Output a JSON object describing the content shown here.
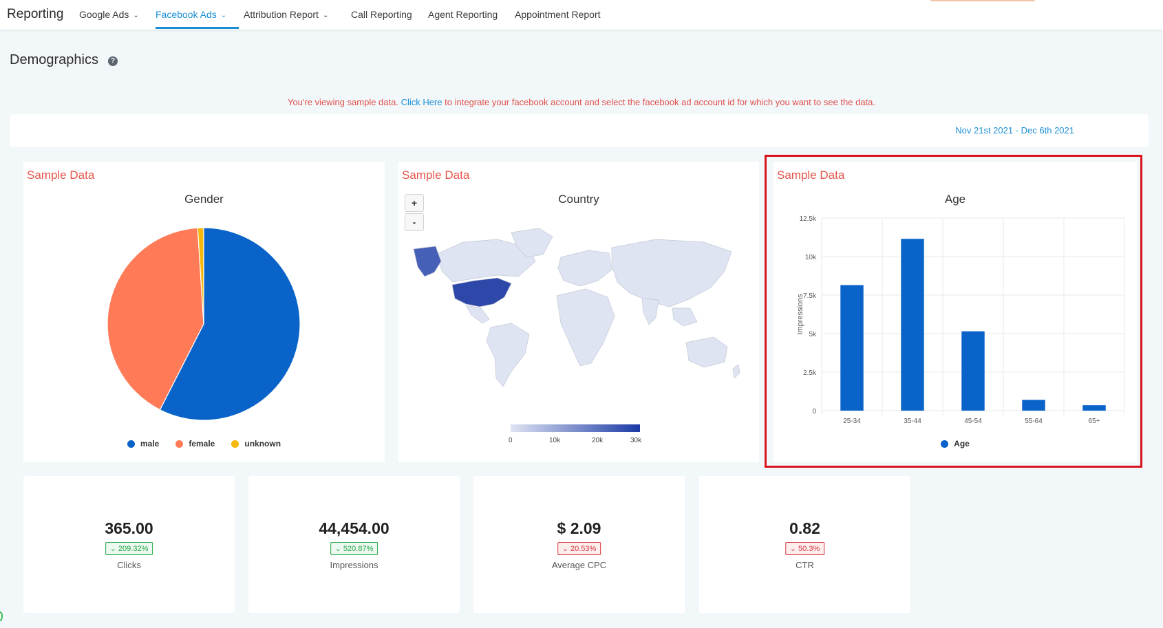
{
  "nav": {
    "brand": "Reporting",
    "items": [
      {
        "label": "Google Ads",
        "dropdown": true,
        "active": false
      },
      {
        "label": "Facebook Ads",
        "dropdown": true,
        "active": true
      },
      {
        "label": "Attribution Report",
        "dropdown": true,
        "active": false
      },
      {
        "label": "Call Reporting",
        "dropdown": false,
        "active": false
      },
      {
        "label": "Agent Reporting",
        "dropdown": false,
        "active": false
      },
      {
        "label": "Appointment Report",
        "dropdown": false,
        "active": false
      }
    ]
  },
  "header": {
    "title": "Demographics",
    "help_icon": "?"
  },
  "notice": {
    "before": "You're viewing sample data. ",
    "link": "Click Here",
    "after": " to integrate your facebook account and select the facebook ad account id for which you want to see the data."
  },
  "date_range": "Nov 21st 2021 - Dec 6th 2021",
  "gender_panel": {
    "sample_label": "Sample Data",
    "title": "Gender",
    "chart_data": {
      "type": "pie",
      "title": "Gender",
      "slices": [
        {
          "label": "male",
          "value": 57.5,
          "color": "#0a63c9"
        },
        {
          "label": "female",
          "value": 41.5,
          "color": "#ff7b57"
        },
        {
          "label": "unknown",
          "value": 1.0,
          "color": "#f5b90d"
        }
      ],
      "legend": "bottom"
    }
  },
  "country_panel": {
    "sample_label": "Sample Data",
    "title": "Country",
    "zoom_in": "+",
    "zoom_out": "-",
    "scale_ticks": [
      "0",
      "10k",
      "20k",
      "30k"
    ],
    "colors": {
      "low": "#dfe4f2",
      "high": "#1b3aa6"
    }
  },
  "age_panel": {
    "sample_label": "Sample Data",
    "title": "Age",
    "chart_data": {
      "type": "bar",
      "title": "Age",
      "categories": [
        "25-34",
        "35-44",
        "45-54",
        "55-64",
        "65+"
      ],
      "series": [
        {
          "name": "Age",
          "values": [
            8150,
            11150,
            5150,
            700,
            350
          ],
          "color": "#0a63c9"
        }
      ],
      "ylabel": "Impressions",
      "ylim": [
        0,
        12500
      ],
      "yticks": [
        "0",
        "2.5k",
        "5k",
        "7.5k",
        "10k",
        "12.5k"
      ],
      "grid": true,
      "legend": "bottom"
    }
  },
  "stats": [
    {
      "value": "365.00",
      "delta": "209.32%",
      "direction": "up",
      "label": "Clicks"
    },
    {
      "value": "44,454.00",
      "delta": "520.87%",
      "direction": "up",
      "label": "Impressions"
    },
    {
      "value": "$ 2.09",
      "delta": "20.53%",
      "direction": "down",
      "label": "Average CPC"
    },
    {
      "value": "0.82",
      "delta": "50.3%",
      "direction": "down",
      "label": "CTR"
    }
  ]
}
